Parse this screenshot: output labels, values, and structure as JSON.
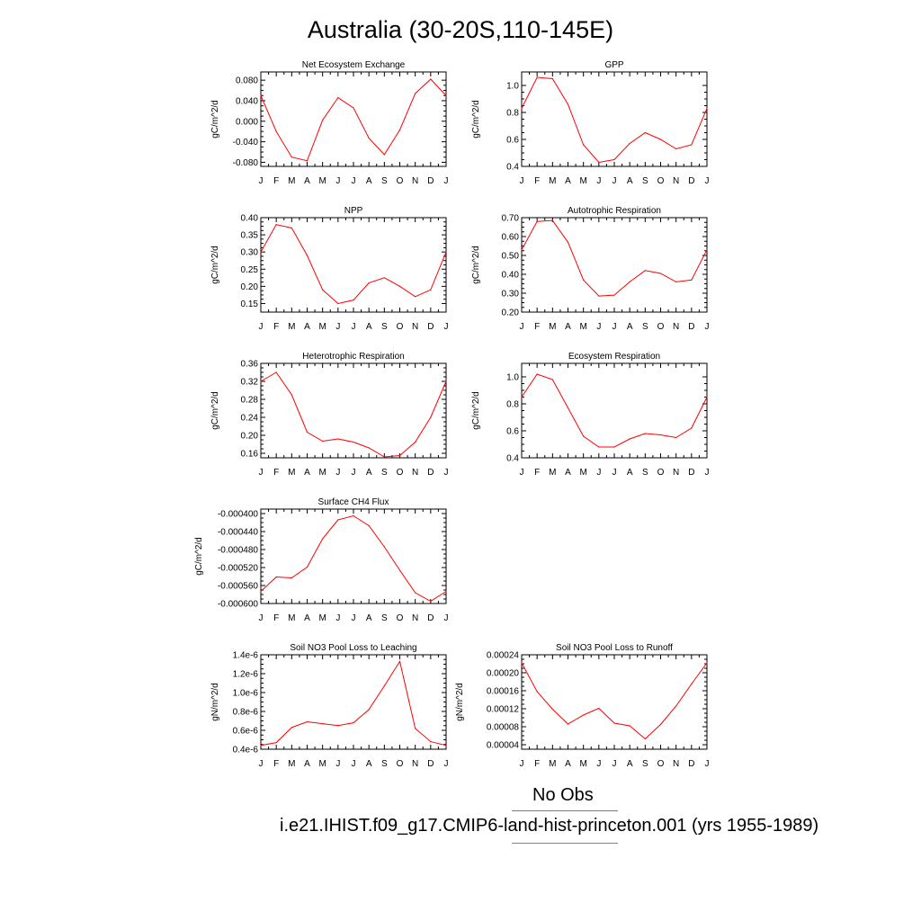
{
  "title": "Australia (30-20S,110-145E)",
  "legend": {
    "items": [
      {
        "label": "No Obs",
        "color": "#6b6bff"
      },
      {
        "label": "i.e21.IHIST.f09_g17.CMIP6-land-hist-princeton.001 (yrs 1955-1989)",
        "color": "#ff5050"
      }
    ]
  },
  "months": [
    "J",
    "F",
    "M",
    "A",
    "M",
    "J",
    "J",
    "A",
    "S",
    "O",
    "N",
    "D",
    "J"
  ],
  "series_color": "#ff0000",
  "chart_data": [
    {
      "type": "line",
      "title": "Net Ecosystem Exchange",
      "ylabel": "gC/m^2/d",
      "ylim": [
        -0.088,
        0.096
      ],
      "yticks": [
        -0.08,
        -0.04,
        0.0,
        0.04,
        0.08
      ],
      "ytick_labels": [
        "-0.080",
        "-0.040",
        "0.000",
        "0.040",
        "0.080"
      ],
      "values": [
        0.05,
        -0.02,
        -0.07,
        -0.077,
        0.002,
        0.046,
        0.026,
        -0.033,
        -0.065,
        -0.017,
        0.054,
        0.082,
        0.05
      ]
    },
    {
      "type": "line",
      "title": "GPP",
      "ylabel": "gC/m^2/d",
      "ylim": [
        0.4,
        1.1
      ],
      "yticks": [
        0.4,
        0.6,
        0.8,
        1.0
      ],
      "ytick_labels": [
        "0.4",
        "0.6",
        "0.8",
        "1.0"
      ],
      "values": [
        0.83,
        1.06,
        1.05,
        0.86,
        0.56,
        0.43,
        0.45,
        0.57,
        0.65,
        0.6,
        0.53,
        0.56,
        0.83
      ]
    },
    {
      "type": "line",
      "title": "NPP",
      "ylabel": "gC/m^2/d",
      "ylim": [
        0.125,
        0.4
      ],
      "yticks": [
        0.15,
        0.2,
        0.25,
        0.3,
        0.35,
        0.4
      ],
      "ytick_labels": [
        "0.15",
        "0.20",
        "0.25",
        "0.30",
        "0.35",
        "0.40"
      ],
      "values": [
        0.3,
        0.38,
        0.37,
        0.29,
        0.19,
        0.15,
        0.16,
        0.21,
        0.225,
        0.2,
        0.17,
        0.19,
        0.3
      ]
    },
    {
      "type": "line",
      "title": "Autotrophic Respiration",
      "ylabel": "gC/m^2/d",
      "ylim": [
        0.2,
        0.7
      ],
      "yticks": [
        0.2,
        0.3,
        0.4,
        0.5,
        0.6,
        0.7
      ],
      "ytick_labels": [
        "0.20",
        "0.30",
        "0.40",
        "0.50",
        "0.60",
        "0.70"
      ],
      "values": [
        0.53,
        0.68,
        0.685,
        0.57,
        0.37,
        0.285,
        0.29,
        0.36,
        0.42,
        0.405,
        0.36,
        0.37,
        0.53
      ]
    },
    {
      "type": "line",
      "title": "Heterotrophic Respiration",
      "ylabel": "gC/m^2/d",
      "ylim": [
        0.15,
        0.36
      ],
      "yticks": [
        0.16,
        0.2,
        0.24,
        0.28,
        0.32,
        0.36
      ],
      "ytick_labels": [
        "0.16",
        "0.20",
        "0.24",
        "0.28",
        "0.32",
        "0.36"
      ],
      "values": [
        0.32,
        0.34,
        0.29,
        0.207,
        0.187,
        0.192,
        0.185,
        0.172,
        0.152,
        0.155,
        0.185,
        0.24,
        0.32
      ]
    },
    {
      "type": "line",
      "title": "Ecosystem Respiration",
      "ylabel": "gC/m^2/d",
      "ylim": [
        0.4,
        1.1
      ],
      "yticks": [
        0.4,
        0.6,
        0.8,
        1.0
      ],
      "ytick_labels": [
        "0.4",
        "0.6",
        "0.8",
        "1.0"
      ],
      "values": [
        0.85,
        1.02,
        0.98,
        0.77,
        0.56,
        0.48,
        0.48,
        0.54,
        0.58,
        0.57,
        0.55,
        0.62,
        0.85
      ]
    },
    {
      "type": "line",
      "title": "Surface CH4 Flux",
      "ylabel": "gC/m^2/d",
      "ylim": [
        -0.0006,
        -0.00039
      ],
      "yticks": [
        -0.0006,
        -0.00056,
        -0.00052,
        -0.00048,
        -0.00044,
        -0.0004
      ],
      "ytick_labels": [
        "-0.000600",
        "-0.000560",
        "-0.000520",
        "-0.000480",
        "-0.000440",
        "-0.000400"
      ],
      "values": [
        -0.000573,
        -0.000541,
        -0.000543,
        -0.000519,
        -0.000456,
        -0.000414,
        -0.000405,
        -0.000427,
        -0.000474,
        -0.000526,
        -0.000576,
        -0.000595,
        -0.000573
      ]
    },
    {
      "type": "line",
      "title": "Soil NO3 Pool Loss to Leaching",
      "ylabel": "gN/m^2/d",
      "ylim": [
        4e-07,
        1.4e-06
      ],
      "yticks": [
        4e-07,
        6e-07,
        8e-07,
        1e-06,
        1.2e-06,
        1.4e-06
      ],
      "ytick_labels": [
        "0.4e-6",
        "0.6e-6",
        "0.8e-6",
        "1.0e-6",
        "1.2e-6",
        "1.4e-6"
      ],
      "values": [
        4.4e-07,
        4.7e-07,
        6.3e-07,
        6.9e-07,
        6.7e-07,
        6.5e-07,
        6.8e-07,
        8.2e-07,
        1.07e-06,
        1.33e-06,
        6.2e-07,
        4.8e-07,
        4.4e-07
      ]
    },
    {
      "type": "line",
      "title": "Soil NO3 Pool Loss to Runoff",
      "ylabel": "gN/m^2/d",
      "ylim": [
        3e-05,
        0.00024
      ],
      "yticks": [
        4e-05,
        8e-05,
        0.00012,
        0.00016,
        0.0002,
        0.00024
      ],
      "ytick_labels": [
        "0.00004",
        "0.00008",
        "0.00012",
        "0.00016",
        "0.00020",
        "0.00024"
      ],
      "values": [
        0.000222,
        0.000158,
        0.000119,
        8.6e-05,
        0.000106,
        0.000121,
        8.8e-05,
        8.2e-05,
        5.3e-05,
        8.5e-05,
        0.000126,
        0.000175,
        0.000222
      ]
    }
  ]
}
